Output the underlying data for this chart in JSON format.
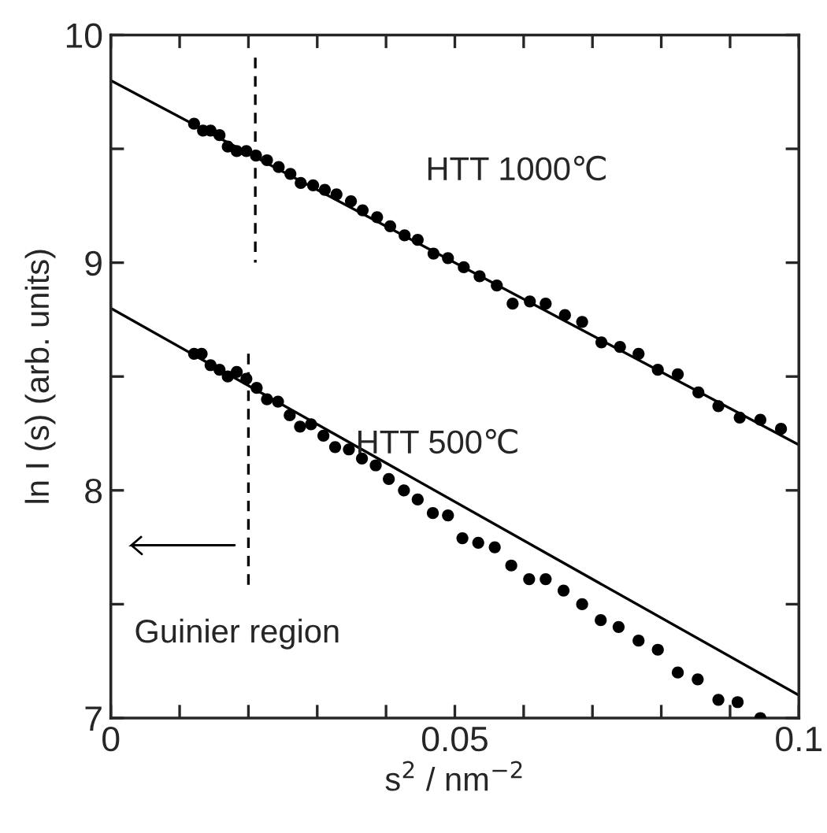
{
  "chart_data": {
    "type": "scatter",
    "xlabel": "s$^{2}$ / nm$^{−2}$",
    "ylabel": "ln I (s) (arb. units)",
    "xlim": [
      0,
      0.1
    ],
    "ylim": [
      7,
      10
    ],
    "xticks": [
      0,
      {
        "value": 0.01,
        "label": null
      },
      {
        "value": 0.02,
        "label": null
      },
      {
        "value": 0.03,
        "label": null
      },
      {
        "value": 0.04,
        "label": null
      },
      0.05,
      {
        "value": 0.06,
        "label": null
      },
      {
        "value": 0.07,
        "label": null
      },
      {
        "value": 0.08,
        "label": null
      },
      {
        "value": 0.09,
        "label": null
      },
      0.1
    ],
    "yticks": [
      7,
      {
        "value": 7.5,
        "label": null
      },
      8,
      {
        "value": 8.5,
        "label": null
      },
      9,
      {
        "value": 9.5,
        "label": null
      },
      10
    ],
    "grid": false,
    "legend": false,
    "series": [
      {
        "marker": "circle",
        "color": "#000000",
        "x": [
          0.0121,
          0.0134,
          0.0145,
          0.0158,
          0.017,
          0.0183,
          0.0197,
          0.0211,
          0.0227,
          0.0244,
          0.0261,
          0.0276,
          0.0294,
          0.0311,
          0.0328,
          0.0349,
          0.0366,
          0.0387,
          0.0406,
          0.0427,
          0.0446,
          0.0469,
          0.049,
          0.0513,
          0.0536,
          0.0561,
          0.0584,
          0.0609,
          0.0632,
          0.066,
          0.0685,
          0.0713,
          0.074,
          0.0767,
          0.0795,
          0.0824,
          0.0854,
          0.0883,
          0.0914,
          0.0944,
          0.0974
        ],
        "values": [
          9.61,
          9.58,
          9.58,
          9.56,
          9.51,
          9.49,
          9.49,
          9.47,
          9.45,
          9.42,
          9.39,
          9.35,
          9.34,
          9.32,
          9.3,
          9.27,
          9.23,
          9.2,
          9.16,
          9.12,
          9.1,
          9.04,
          9.02,
          8.98,
          8.94,
          8.9,
          8.82,
          8.83,
          8.82,
          8.77,
          8.74,
          8.65,
          8.63,
          8.6,
          8.53,
          8.51,
          8.43,
          8.37,
          8.32,
          8.31,
          8.27
        ]
      },
      {
        "marker": "circle",
        "color": "#000000",
        "x": [
          0.0121,
          0.0132,
          0.0145,
          0.0158,
          0.017,
          0.0183,
          0.0197,
          0.0212,
          0.0227,
          0.0243,
          0.026,
          0.0275,
          0.0291,
          0.0309,
          0.0326,
          0.0346,
          0.0365,
          0.0385,
          0.0404,
          0.0426,
          0.0446,
          0.0468,
          0.049,
          0.0511,
          0.0534,
          0.0558,
          0.0582,
          0.0608,
          0.0632,
          0.0658,
          0.0685,
          0.0712,
          0.0738,
          0.0767,
          0.0795,
          0.0824,
          0.0853,
          0.0883,
          0.0911,
          0.0944
        ],
        "values": [
          8.6,
          8.6,
          8.55,
          8.53,
          8.5,
          8.52,
          8.49,
          8.45,
          8.4,
          8.39,
          8.33,
          8.28,
          8.29,
          8.24,
          8.19,
          8.18,
          8.14,
          8.11,
          8.05,
          8.0,
          7.96,
          7.9,
          7.89,
          7.79,
          7.77,
          7.75,
          7.67,
          7.61,
          7.61,
          7.56,
          7.5,
          7.43,
          7.4,
          7.34,
          7.3,
          7.2,
          7.17,
          7.08,
          7.07,
          7.0
        ]
      },
      {
        "type": "line",
        "color": "#000000",
        "line_style": "solid",
        "x": [
          0,
          0.1
        ],
        "values": [
          9.8,
          8.2
        ]
      },
      {
        "type": "line",
        "color": "#000000",
        "line_style": "solid",
        "x": [
          0,
          0.1
        ],
        "values": [
          8.8,
          7.1
        ]
      },
      {
        "type": "line",
        "color": "#000000",
        "line_style": "dashed",
        "x": [
          0.021,
          0.021
        ],
        "values": [
          9.9,
          9.0
        ]
      },
      {
        "type": "line",
        "color": "#000000",
        "line_style": "dashed",
        "x": [
          0.02,
          0.02
        ],
        "values": [
          8.6,
          7.57
        ]
      }
    ],
    "annotations": [
      "HTT 1000℃",
      "HTT 500℃",
      "Guinier region"
    ]
  }
}
